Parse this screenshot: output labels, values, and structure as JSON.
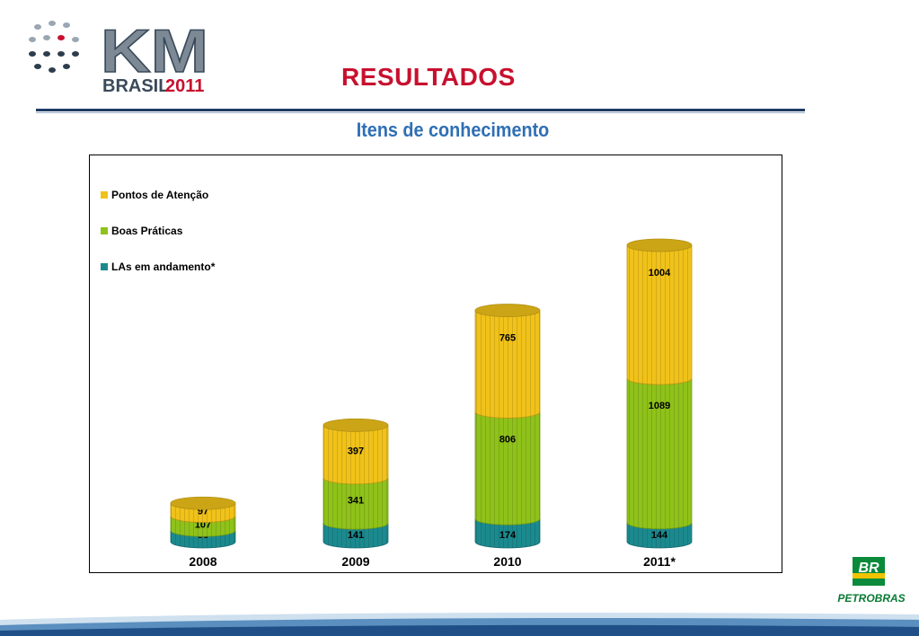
{
  "header": {
    "logo_brand": "KM",
    "logo_sub": "BRASIL",
    "logo_year": "2011",
    "title": "RESULTADOS",
    "subtitle": "Itens de conhecimento"
  },
  "footer": {
    "company": "PETROBRAS",
    "company_mark": "BR"
  },
  "colors": {
    "title": "#c8102e",
    "subtitle": "#2f6fb4",
    "las": "#1b8a8f",
    "boas": "#8fc21a",
    "pontos": "#f0c21a"
  },
  "chart_data": {
    "type": "bar",
    "stacked": true,
    "style": "3d-cylinder",
    "categories": [
      "2008",
      "2009",
      "2010",
      "2011*"
    ],
    "series": [
      {
        "name": "LAs em andamento*",
        "values": [
          86,
          141,
          174,
          144
        ],
        "color": "#1b8a8f"
      },
      {
        "name": "Boas Práticas",
        "values": [
          107,
          341,
          806,
          1089
        ],
        "color": "#8fc21a"
      },
      {
        "name": "Pontos de Atenção",
        "values": [
          97,
          397,
          765,
          1004
        ],
        "color": "#f0c21a"
      }
    ],
    "legend_position": "top-left",
    "grid": false
  }
}
